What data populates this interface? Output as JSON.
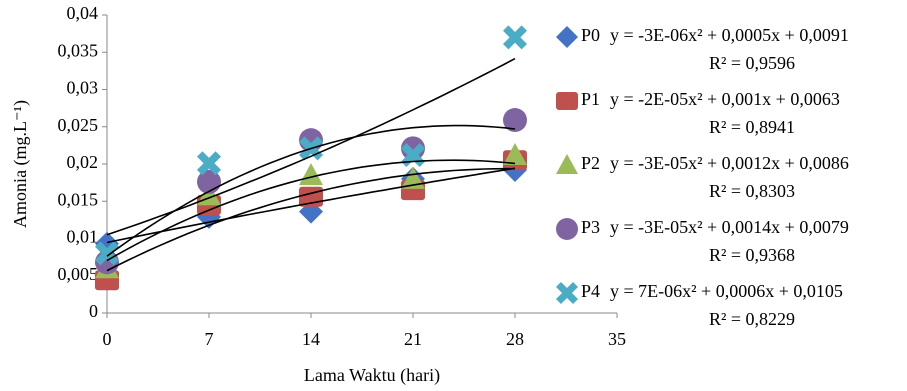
{
  "chart_data": {
    "type": "scatter",
    "xlabel": "Lama Waktu (hari)",
    "ylabel": "Amonia (mg.L⁻¹)",
    "x": [
      0,
      7,
      14,
      21,
      28
    ],
    "xlim": [
      0,
      35
    ],
    "xticks": [
      0,
      7,
      14,
      21,
      28,
      35
    ],
    "ylim": [
      0,
      0.04
    ],
    "yticks": [
      0,
      {
        "value": 0.005,
        "label": "0,005"
      },
      {
        "value": 0.01,
        "label": "0,01"
      },
      {
        "value": 0.015,
        "label": "0,015"
      },
      {
        "value": 0.02,
        "label": "0,02"
      },
      {
        "value": 0.025,
        "label": "0,025"
      },
      {
        "value": 0.03,
        "label": "0,03"
      },
      {
        "value": 0.035,
        "label": "0,035"
      },
      {
        "value": 0.04,
        "label": "0,04"
      }
    ],
    "grid": false,
    "trendline": "polynomial",
    "series": [
      {
        "name": "P0",
        "color": "#4472c4",
        "marker": "diamond",
        "values": [
          0.0093,
          0.0129,
          0.0136,
          0.018,
          0.0192
        ],
        "equation": "y = -3E-06x² + 0,0005x + 0,0091",
        "r2": "R² = 0,9596"
      },
      {
        "name": "P1",
        "color": "#c0504d",
        "marker": "square",
        "values": [
          0.0044,
          0.0145,
          0.0156,
          0.0165,
          0.0205
        ],
        "equation": "y = -2E-05x² + 0,001x + 0,0063",
        "r2": "R² = 0,8941"
      },
      {
        "name": "P2",
        "color": "#9bbb59",
        "marker": "triangle",
        "values": [
          0.006,
          0.0158,
          0.0185,
          0.018,
          0.0212
        ],
        "equation": "y = -3E-05x² + 0,0012x + 0,0086",
        "r2": "R² = 0,8303"
      },
      {
        "name": "P3",
        "color": "#8064a2",
        "marker": "circle",
        "values": [
          0.0068,
          0.0176,
          0.0232,
          0.0221,
          0.0259
        ],
        "equation": "y = -3E-05x² + 0,0014x + 0,0079",
        "r2": "R² = 0,9368"
      },
      {
        "name": "P4",
        "color": "#4bacc6",
        "marker": "cross",
        "values": [
          0.008,
          0.0201,
          0.0221,
          0.0212,
          0.037
        ],
        "equation": "y = 7E-06x² + 0,0006x + 0,0105",
        "r2": "R² = 0,8229"
      }
    ]
  }
}
